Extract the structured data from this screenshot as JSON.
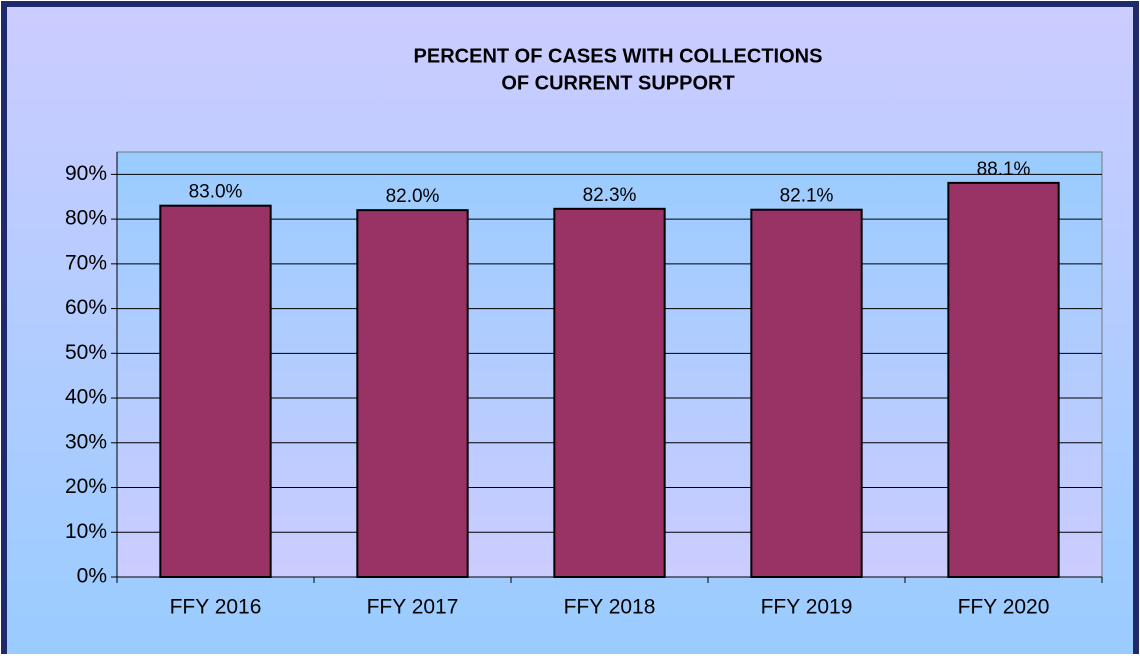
{
  "chart_data": {
    "type": "bar",
    "title": [
      "PERCENT OF CASES WITH COLLECTIONS",
      "OF CURRENT SUPPORT"
    ],
    "categories": [
      "FFY 2016",
      "FFY 2017",
      "FFY 2018",
      "FFY 2019",
      "FFY 2020"
    ],
    "values": [
      83.0,
      82.0,
      82.3,
      82.1,
      88.1
    ],
    "value_labels": [
      "83.0%",
      "82.0%",
      "82.3%",
      "82.1%",
      "88.1%"
    ],
    "color": "#993366",
    "ylim": [
      0,
      95
    ],
    "yticks": [
      {
        "value": 0,
        "label": "0%"
      },
      {
        "value": 10,
        "label": "10%"
      },
      {
        "value": 20,
        "label": "20%"
      },
      {
        "value": 30,
        "label": "30%"
      },
      {
        "value": 40,
        "label": "40%"
      },
      {
        "value": 50,
        "label": "50%"
      },
      {
        "value": 60,
        "label": "60%"
      },
      {
        "value": 70,
        "label": "70%"
      },
      {
        "value": 80,
        "label": "80%"
      },
      {
        "value": 90,
        "label": "90%"
      }
    ],
    "grid": true
  }
}
